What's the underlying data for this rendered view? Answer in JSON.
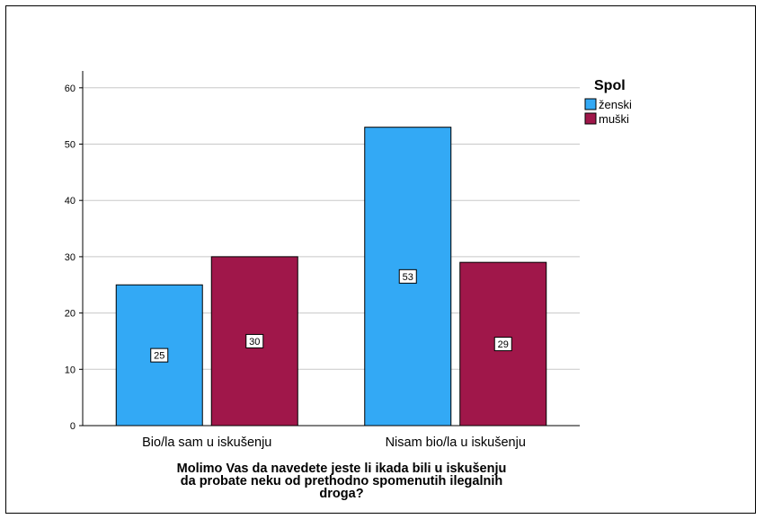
{
  "chart_data": {
    "type": "bar",
    "categories": [
      "Bio/la sam u iskušenju",
      "Nisam bio/la u iskušenju"
    ],
    "series": [
      {
        "name": "ženski",
        "values": [
          25,
          53
        ],
        "color": "#33a9f5"
      },
      {
        "name": "muški",
        "values": [
          30,
          29
        ],
        "color": "#a0174a"
      }
    ],
    "legend_title": "Spol",
    "legend_position": "top-right",
    "xlabel_lines": [
      "Molimo Vas da navedete jeste li ikada bili u iskušenju",
      "da probate neku od prethodno spomenutih ilegalnih",
      "droga?"
    ],
    "ylabel": "",
    "ylim": [
      0,
      63
    ],
    "yticks": [
      0,
      10,
      20,
      30,
      40,
      50,
      60
    ],
    "grid": true
  }
}
